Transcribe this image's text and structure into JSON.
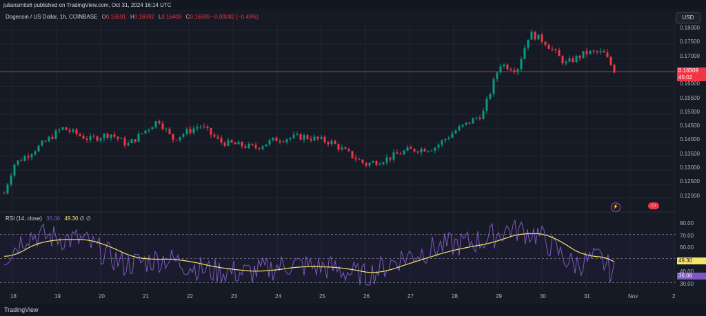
{
  "header": {
    "publisher": "juliansmits6 published on TradingView.com, Oct 31, 2024 16:14 UTC"
  },
  "symbol": {
    "title": "Dogecoin / US Dollar, 1h, COINBASE",
    "o_label": "O",
    "o": "0.16591",
    "h_label": "H",
    "h": "0.16592",
    "l_label": "L",
    "l": "0.16409",
    "c_label": "C",
    "c": "0.16509",
    "change": "−0.00082 (−0.49%)"
  },
  "currency": "USD",
  "last_price": {
    "price": "0.16509",
    "countdown": "45:02"
  },
  "price_ticks": [
    "0.18000",
    "0.17500",
    "0.17000",
    "0.16500",
    "0.16000",
    "0.15500",
    "0.15000",
    "0.14500",
    "0.14000",
    "0.13500",
    "0.13000",
    "0.12500",
    "0.12000"
  ],
  "rsi": {
    "label": "RSI (14, close)",
    "value": "36.06",
    "ma": "49.30",
    "icons": "∅ ∅",
    "ticks": [
      "80.00",
      "70.00",
      "60.00",
      "50.00",
      "40.00",
      "30.00"
    ]
  },
  "time_ticks": [
    "18",
    "19",
    "20",
    "21",
    "22",
    "23",
    "24",
    "25",
    "26",
    "27",
    "28",
    "29",
    "30",
    "31",
    "Nov",
    "2"
  ],
  "footer": {
    "logo": "TradingView"
  },
  "colors": {
    "up": "#089981",
    "down": "#f23645",
    "rsi": "#7e57c2",
    "rsi_ma": "#f7e46b",
    "bg": "#161a25"
  },
  "icons": {
    "flash": "lightning-icon",
    "flag": "us-flag-icon"
  }
}
